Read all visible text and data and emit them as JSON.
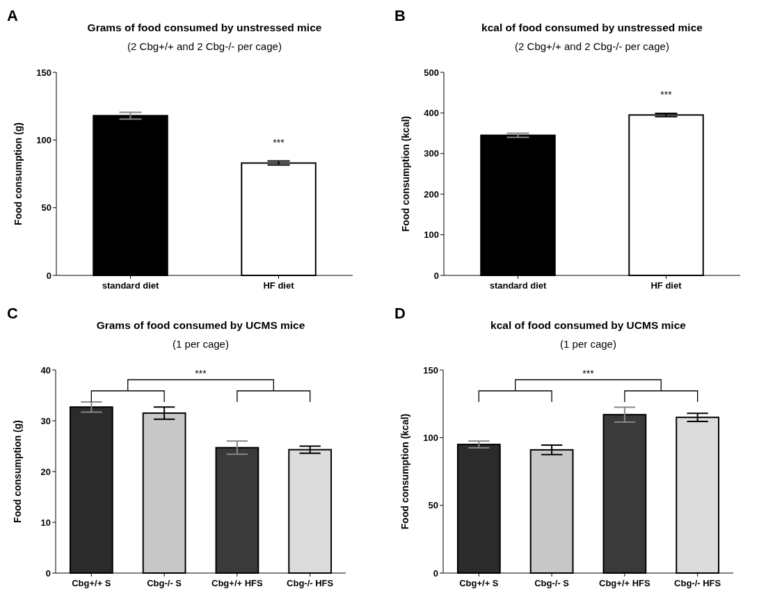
{
  "chart_data": [
    {
      "type": "bar",
      "title": "Grams of food consumed by unstressed mice",
      "subtitle": "(2 Cbg+/+ and 2 Cbg-/- per cage)",
      "ylabel": "Food consumption (g)",
      "categories": [
        "standard diet",
        "HF diet"
      ],
      "values": [
        118,
        83
      ],
      "errors": [
        2.5,
        1.5
      ],
      "colors": [
        "#000000",
        "#ffffff"
      ],
      "ylim": [
        0,
        150
      ],
      "yticks": [
        0,
        50,
        100,
        150
      ],
      "annotations": [
        "A",
        "***"
      ]
    },
    {
      "type": "bar",
      "title": "kcal of food consumed by unstressed mice",
      "subtitle": "(2 Cbg+/+ and 2 Cbg-/- per cage)",
      "ylabel": "Food consumption (kcal)",
      "categories": [
        "standard diet",
        "HF diet"
      ],
      "values": [
        345,
        395
      ],
      "errors": [
        5,
        4
      ],
      "colors": [
        "#000000",
        "#ffffff"
      ],
      "ylim": [
        0,
        500
      ],
      "yticks": [
        0,
        100,
        200,
        300,
        400,
        500
      ],
      "annotations": [
        "B",
        "***"
      ]
    },
    {
      "type": "bar",
      "title": "Grams of food consumed by UCMS mice",
      "subtitle": "(1 per cage)",
      "ylabel": "Food consumption (g)",
      "categories": [
        "Cbg+/+ S",
        "Cbg-/- S",
        "Cbg+/+ HFS",
        "Cbg-/- HFS"
      ],
      "values": [
        32.7,
        31.5,
        24.7,
        24.3
      ],
      "errors": [
        1,
        1.2,
        1.3,
        0.7
      ],
      "colors": [
        "#2b2b2b",
        "#c8c8c8",
        "#3a3a3a",
        "#dcdcdc"
      ],
      "ylim": [
        0,
        40
      ],
      "yticks": [
        0,
        10,
        20,
        30,
        40
      ],
      "annotations": [
        "C",
        "***"
      ]
    },
    {
      "type": "bar",
      "title": "kcal of food consumed by UCMS mice",
      "subtitle": "(1 per cage)",
      "ylabel": "Food consumption (kcal)",
      "categories": [
        "Cbg+/+ S",
        "Cbg-/- S",
        "Cbg+/+ HFS",
        "Cbg-/- HFS"
      ],
      "values": [
        95,
        91,
        117,
        115
      ],
      "errors": [
        2.5,
        3.5,
        5.5,
        3
      ],
      "colors": [
        "#2b2b2b",
        "#c8c8c8",
        "#3a3a3a",
        "#dcdcdc"
      ],
      "ylim": [
        0,
        150
      ],
      "yticks": [
        0,
        50,
        100,
        150
      ],
      "annotations": [
        "D",
        "***"
      ]
    }
  ]
}
